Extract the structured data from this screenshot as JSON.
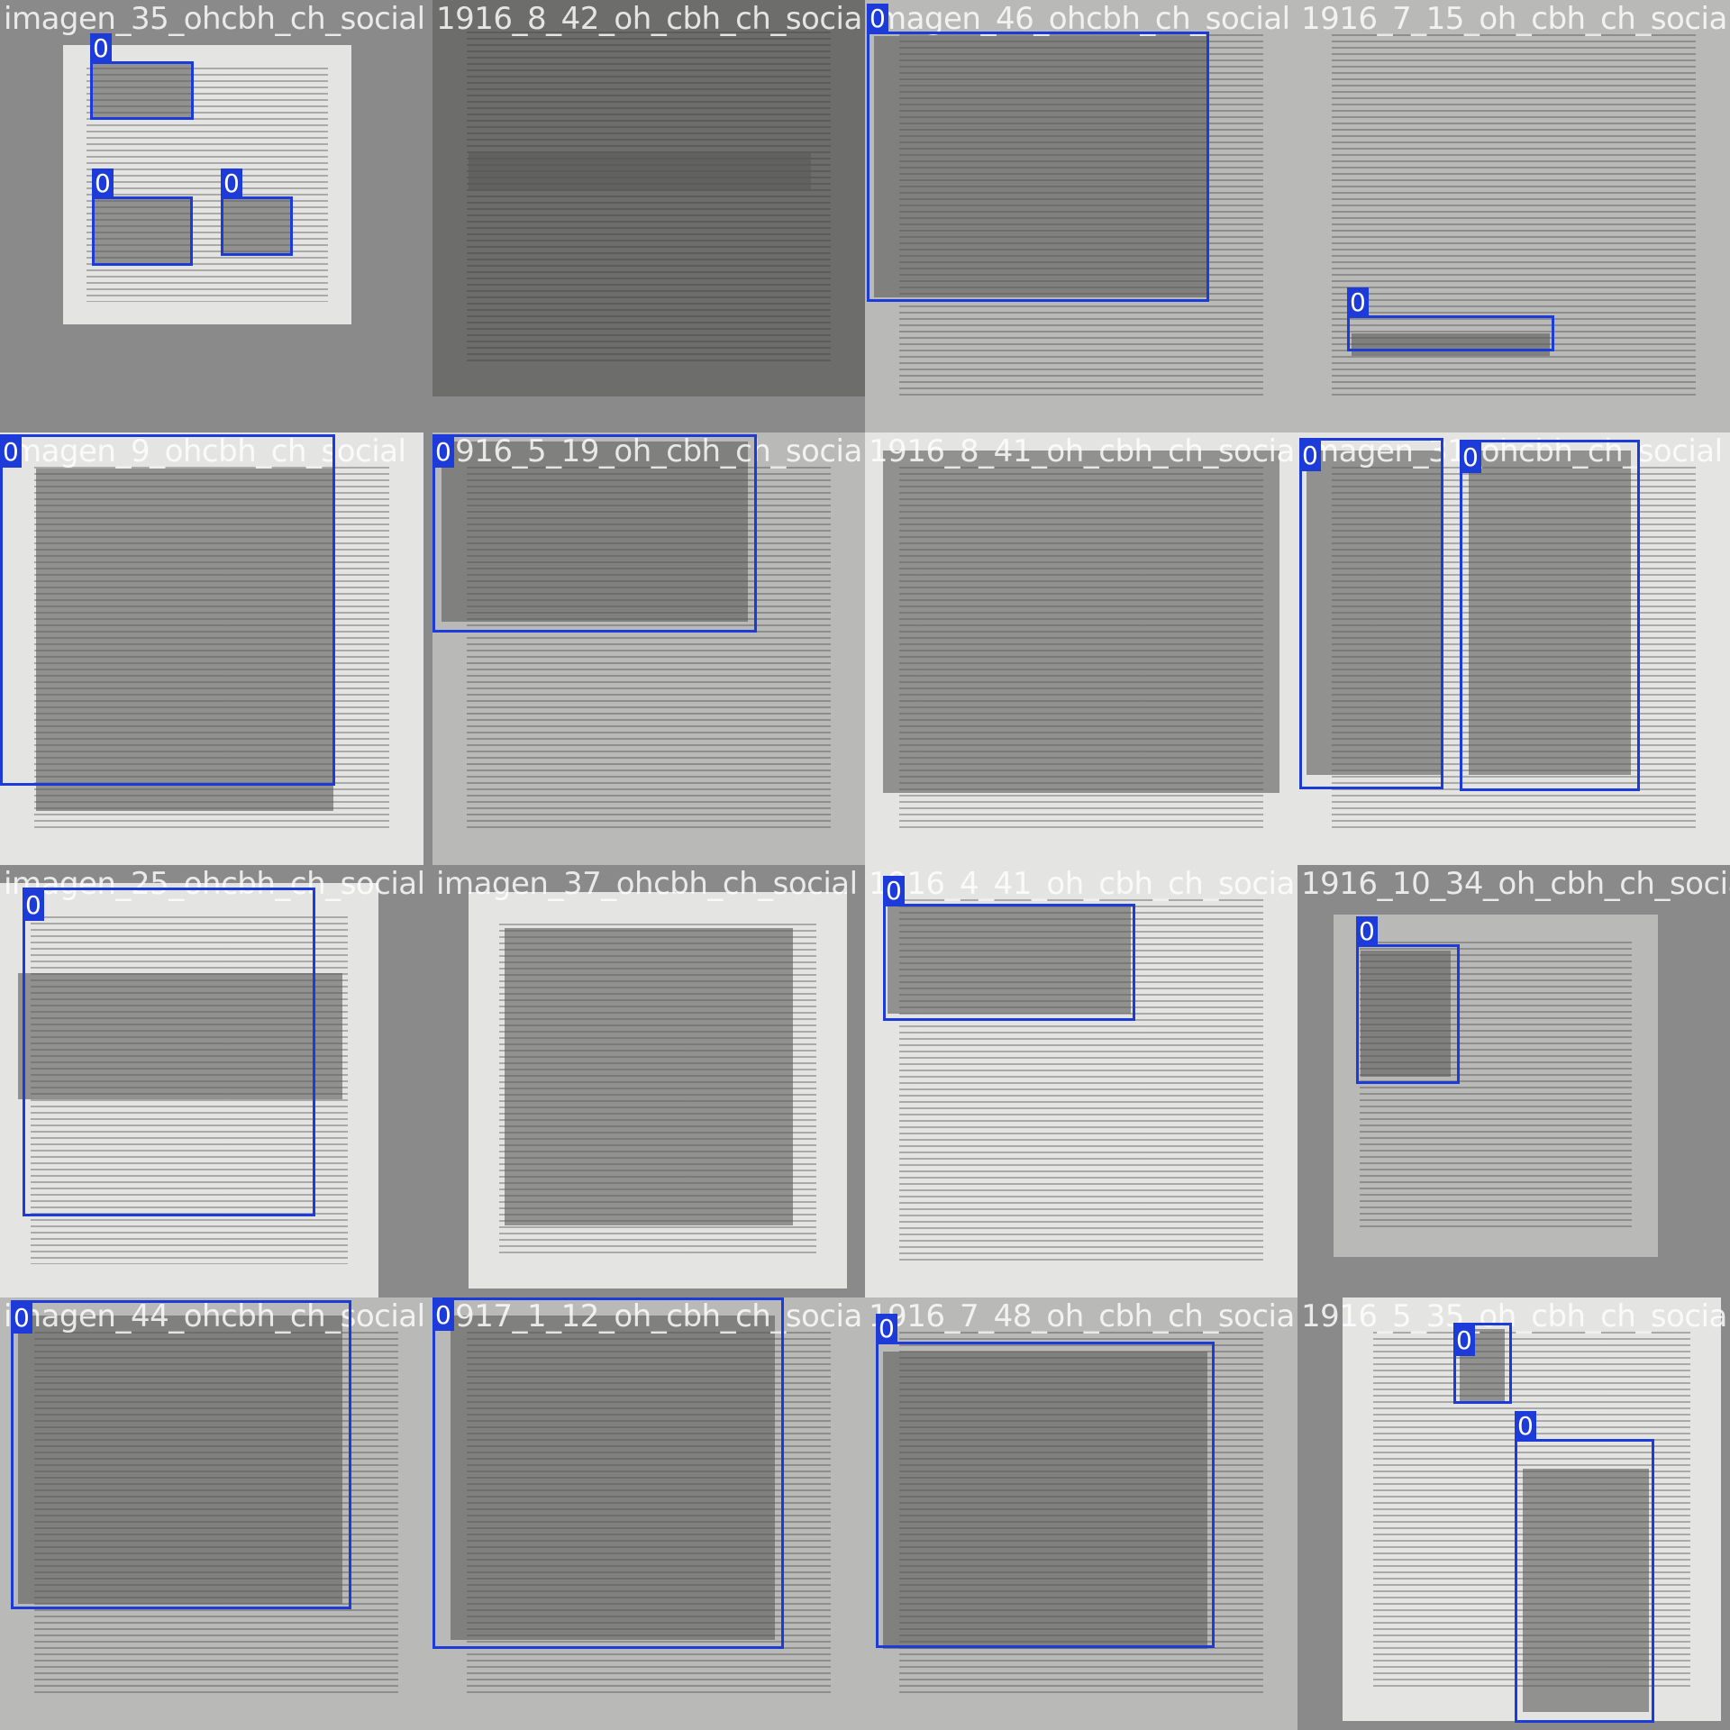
{
  "tiles": [
    {
      "name": "imagen_35_ohcbh_ch_social",
      "tone": "light",
      "boxes": [
        {
          "label": "0"
        },
        {
          "label": "0"
        },
        {
          "label": "0"
        }
      ]
    },
    {
      "name": "1916_8_42_oh_cbh_ch_social",
      "tone": "dark",
      "boxes": []
    },
    {
      "name": "imagen_46_ohcbh_ch_social",
      "tone": "mid",
      "boxes": [
        {
          "label": "0"
        }
      ]
    },
    {
      "name": "1916_7_15_oh_cbh_ch_social",
      "tone": "mid",
      "boxes": [
        {
          "label": "0"
        }
      ]
    },
    {
      "name": "imagen_9_ohcbh_ch_social",
      "tone": "light",
      "boxes": [
        {
          "label": "0"
        }
      ]
    },
    {
      "name": "1916_5_19_oh_cbh_ch_social",
      "tone": "mid",
      "boxes": [
        {
          "label": "0"
        }
      ]
    },
    {
      "name": "1916_8_41_oh_cbh_ch_social",
      "tone": "light",
      "boxes": []
    },
    {
      "name": "imagen_31_ohcbh_ch_social",
      "tone": "light",
      "boxes": [
        {
          "label": "0"
        },
        {
          "label": "0"
        }
      ]
    },
    {
      "name": "imagen_25_ohcbh_ch_social",
      "tone": "light",
      "boxes": [
        {
          "label": "0"
        }
      ]
    },
    {
      "name": "imagen_37_ohcbh_ch_social",
      "tone": "light",
      "boxes": []
    },
    {
      "name": "1916_4_41_oh_cbh_ch_social",
      "tone": "light",
      "boxes": [
        {
          "label": "0"
        }
      ]
    },
    {
      "name": "1916_10_34_oh_cbh_ch_social",
      "tone": "mid",
      "boxes": [
        {
          "label": "0"
        }
      ]
    },
    {
      "name": "imagen_44_ohcbh_ch_social",
      "tone": "mid",
      "boxes": [
        {
          "label": "0"
        }
      ]
    },
    {
      "name": "1917_1_12_oh_cbh_ch_social",
      "tone": "mid",
      "boxes": [
        {
          "label": "0"
        }
      ]
    },
    {
      "name": "1916_7_48_oh_cbh_ch_social",
      "tone": "mid",
      "boxes": [
        {
          "label": "0"
        }
      ]
    },
    {
      "name": "1916_5_35_oh_cbh_ch_social",
      "tone": "light",
      "boxes": [
        {
          "label": "0"
        },
        {
          "label": "0"
        }
      ]
    }
  ]
}
